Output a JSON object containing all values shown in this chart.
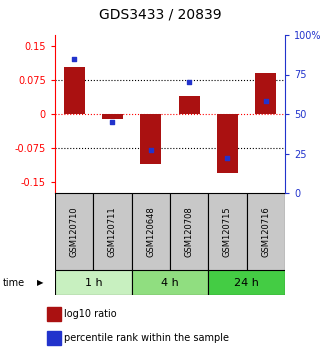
{
  "title": "GDS3433 / 20839",
  "samples": [
    "GSM120710",
    "GSM120711",
    "GSM120648",
    "GSM120708",
    "GSM120715",
    "GSM120716"
  ],
  "log10_ratio": [
    0.105,
    -0.01,
    -0.11,
    0.04,
    -0.13,
    0.09
  ],
  "percentile_rank": [
    85,
    45,
    27,
    70,
    22,
    58
  ],
  "groups": [
    {
      "label": "1 h",
      "indices": [
        0,
        1
      ],
      "color": "#c8f0c0"
    },
    {
      "label": "4 h",
      "indices": [
        2,
        3
      ],
      "color": "#90de80"
    },
    {
      "label": "24 h",
      "indices": [
        4,
        5
      ],
      "color": "#44cc44"
    }
  ],
  "bar_color": "#aa1111",
  "dot_color": "#2233cc",
  "bar_width": 0.55,
  "ylim_left": [
    -0.175,
    0.175
  ],
  "ylim_right": [
    0,
    100
  ],
  "yticks_left": [
    -0.15,
    -0.075,
    0,
    0.075,
    0.15
  ],
  "yticks_right": [
    0,
    25,
    50,
    75,
    100
  ],
  "ytick_labels_left": [
    "-0.15",
    "-0.075",
    "0",
    "0.075",
    "0.15"
  ],
  "ytick_labels_right": [
    "0",
    "25",
    "50",
    "75",
    "100%"
  ],
  "sample_box_color": "#c8c8c8",
  "time_label": "time",
  "legend_log10": "log10 ratio",
  "legend_pct": "percentile rank within the sample",
  "title_fontsize": 10,
  "tick_fontsize": 7,
  "sample_fontsize": 6,
  "group_fontsize": 8,
  "legend_fontsize": 7
}
